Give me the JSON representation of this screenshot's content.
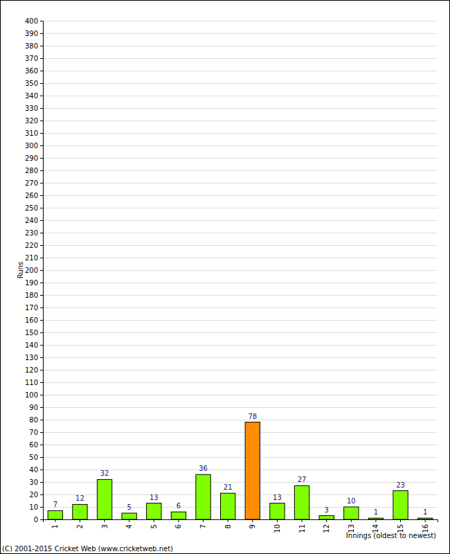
{
  "chart_data": {
    "type": "bar",
    "categories": [
      "1",
      "2",
      "3",
      "4",
      "5",
      "6",
      "7",
      "8",
      "9",
      "10",
      "11",
      "12",
      "13",
      "14",
      "15",
      "16"
    ],
    "values": [
      7,
      12,
      32,
      5,
      13,
      6,
      36,
      21,
      78,
      13,
      27,
      3,
      10,
      1,
      23,
      1
    ],
    "colors": [
      "#80ff00",
      "#80ff00",
      "#80ff00",
      "#80ff00",
      "#80ff00",
      "#80ff00",
      "#80ff00",
      "#80ff00",
      "#ff8c00",
      "#80ff00",
      "#80ff00",
      "#80ff00",
      "#80ff00",
      "#80ff00",
      "#80ff00",
      "#80ff00"
    ],
    "x_label": "Innings (oldest to newest)",
    "y_label": "Runs",
    "annotations": [
      "(C) 2001-2015 Cricket Web (www.cricketweb.net)"
    ],
    "ylim": [
      0,
      400
    ],
    "yticks": [
      0,
      10,
      20,
      30,
      40,
      50,
      60,
      70,
      80,
      90,
      100,
      110,
      120,
      130,
      140,
      150,
      160,
      170,
      180,
      190,
      200,
      210,
      220,
      230,
      240,
      250,
      260,
      270,
      280,
      290,
      300,
      310,
      320,
      330,
      340,
      350,
      360,
      370,
      380,
      390,
      400
    ],
    "grid": true,
    "data_labels": true
  }
}
